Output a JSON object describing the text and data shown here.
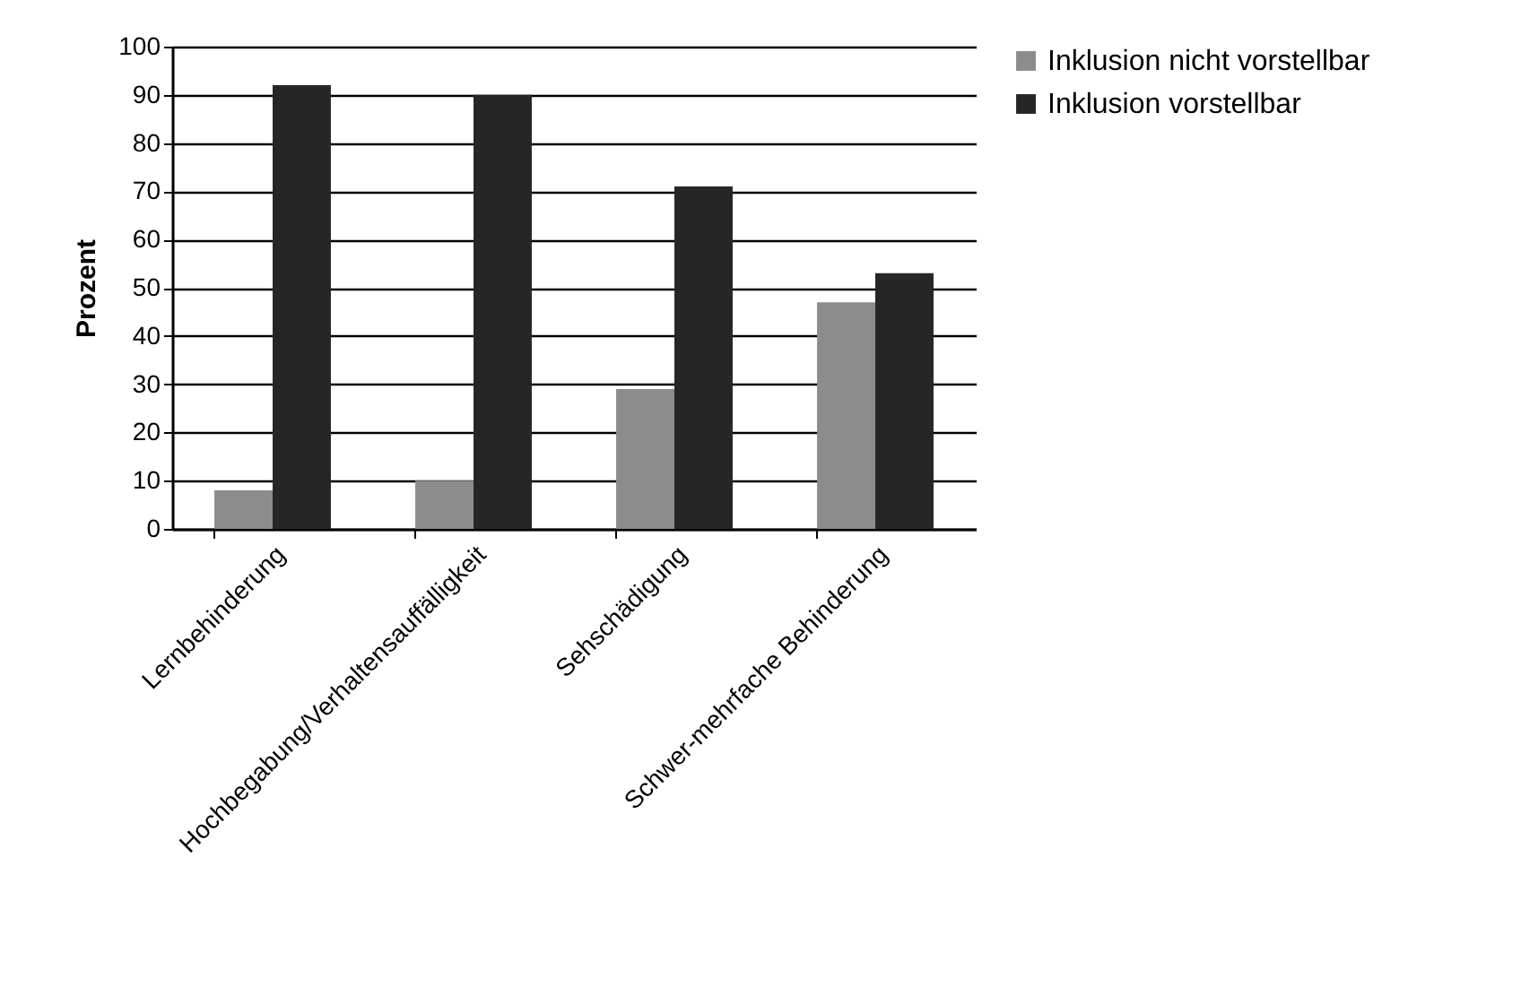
{
  "chart_data": {
    "type": "bar",
    "ylabel": "Prozent",
    "categories": [
      "Lernbehinderung",
      "Hochbegabung/Verhaltensauffälligkeit",
      "Sehschädigung",
      "Schwer-mehrfache Behinderung"
    ],
    "series": [
      {
        "name": "Inklusion nicht vorstellbar",
        "color": "#8c8c8c",
        "values": [
          8,
          10,
          29,
          47
        ]
      },
      {
        "name": "Inklusion vorstellbar",
        "color": "#262626",
        "values": [
          92,
          90,
          71,
          53
        ]
      }
    ],
    "ylim": [
      0,
      100
    ],
    "yticks": [
      0,
      10,
      20,
      30,
      40,
      50,
      60,
      70,
      80,
      90,
      100
    ],
    "grid": "y",
    "legend": "top right"
  }
}
